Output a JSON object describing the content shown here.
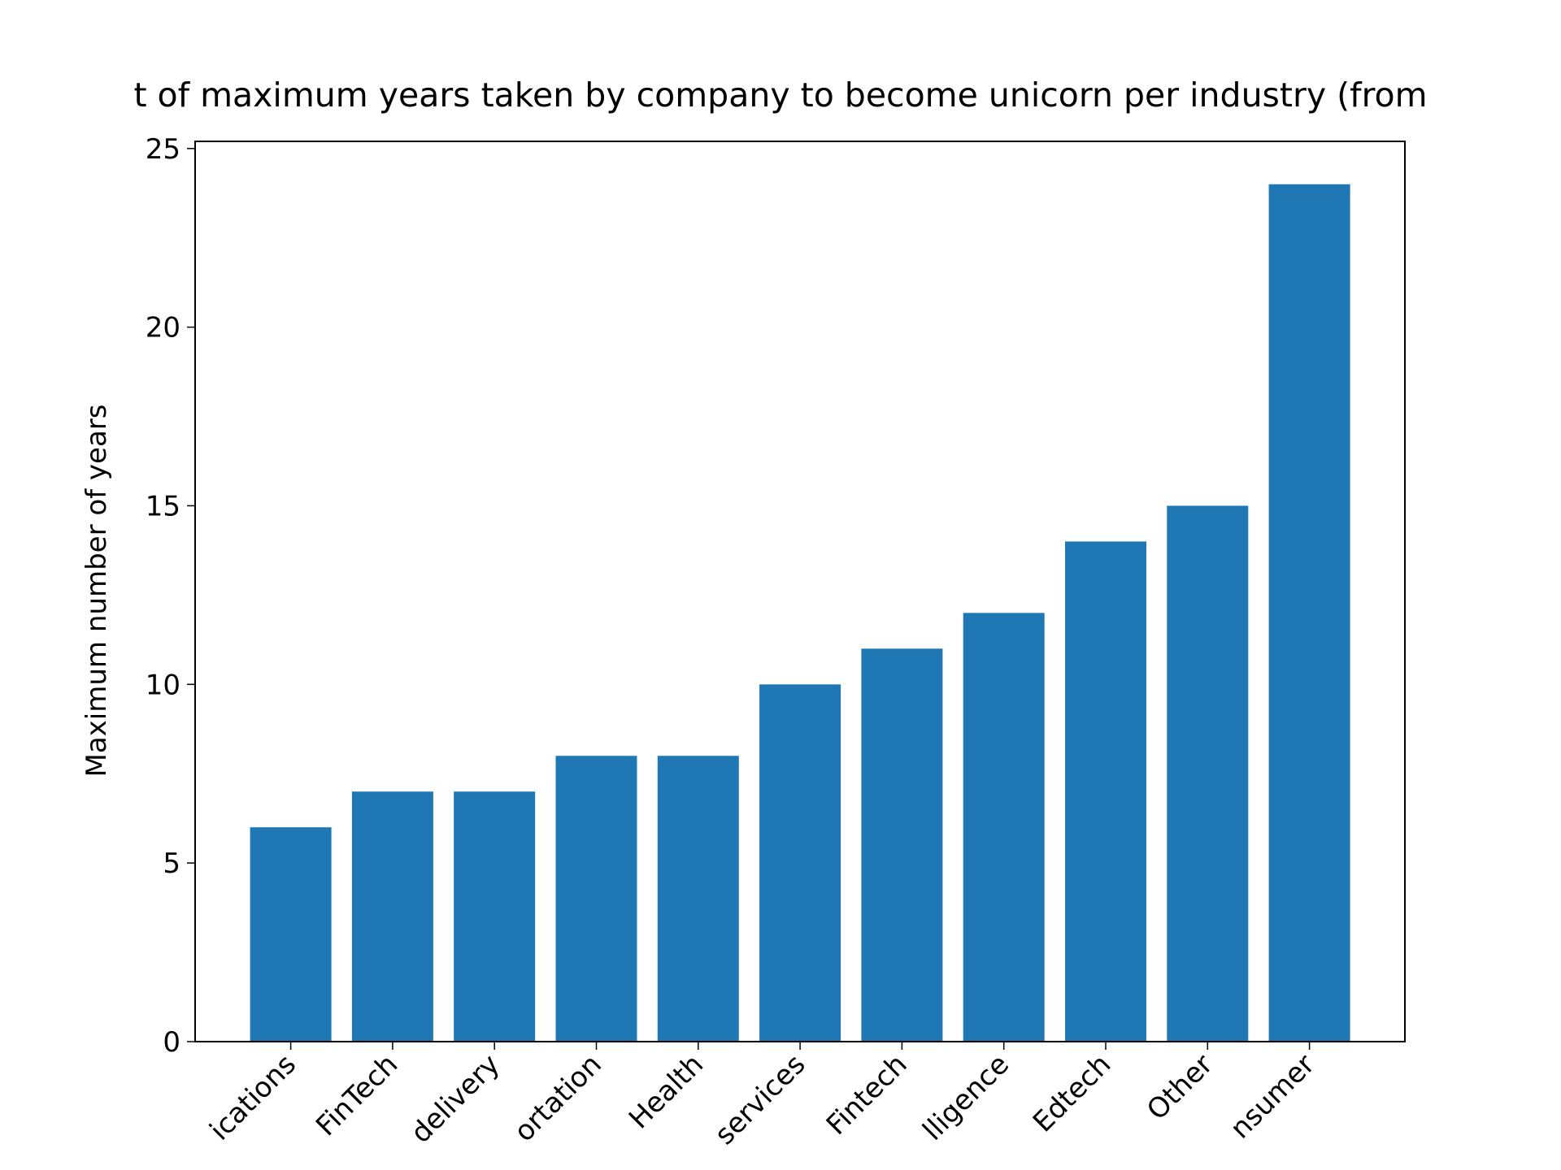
{
  "chart_data": {
    "type": "bar",
    "title": "t of maximum years taken by company to become unicorn per industry (from",
    "y_label": "Maximum number of years",
    "categories": [
      "ications",
      "FinTech",
      "delivery",
      "ortation",
      "Health",
      "services",
      "Fintech",
      "lligence",
      "Edtech",
      "Other",
      "nsumer"
    ],
    "values": [
      6,
      7,
      7,
      8,
      8,
      10,
      11,
      12,
      14,
      15,
      24
    ],
    "color": "#1f77b4",
    "ylim": [
      0,
      25.2
    ],
    "yticks": [
      0,
      5,
      10,
      15,
      20,
      25
    ],
    "grid": false
  }
}
